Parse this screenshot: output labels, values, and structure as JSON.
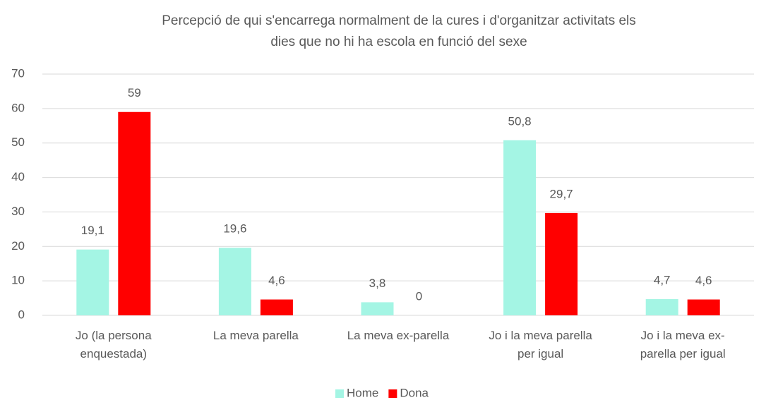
{
  "chart_data": {
    "type": "bar",
    "title": "Percepció de qui s'encarrega normalment de la cures i d'organitzar activitats els dies que no hi ha escola en funció del sexe",
    "categories": [
      "Jo (la persona enquestada)",
      "La meva parella",
      "La meva ex-parella",
      "Jo i la meva parella per igual",
      "Jo i la meva ex-parella per igual"
    ],
    "series": [
      {
        "name": "Home",
        "color": "#a4f5e4",
        "values": [
          19.1,
          19.6,
          3.8,
          50.8,
          4.7
        ],
        "value_labels": [
          "19,1",
          "19,6",
          "3,8",
          "50,8",
          "4,7"
        ]
      },
      {
        "name": "Dona",
        "color": "#ff0000",
        "values": [
          59,
          4.6,
          0,
          29.7,
          4.6
        ],
        "value_labels": [
          "59",
          "4,6",
          "0",
          "29,7",
          "4,6"
        ]
      }
    ],
    "ylim": [
      0,
      70
    ],
    "yticks": [
      0,
      10,
      20,
      30,
      40,
      50,
      60,
      70
    ],
    "grid": true,
    "legend": "bottom"
  }
}
